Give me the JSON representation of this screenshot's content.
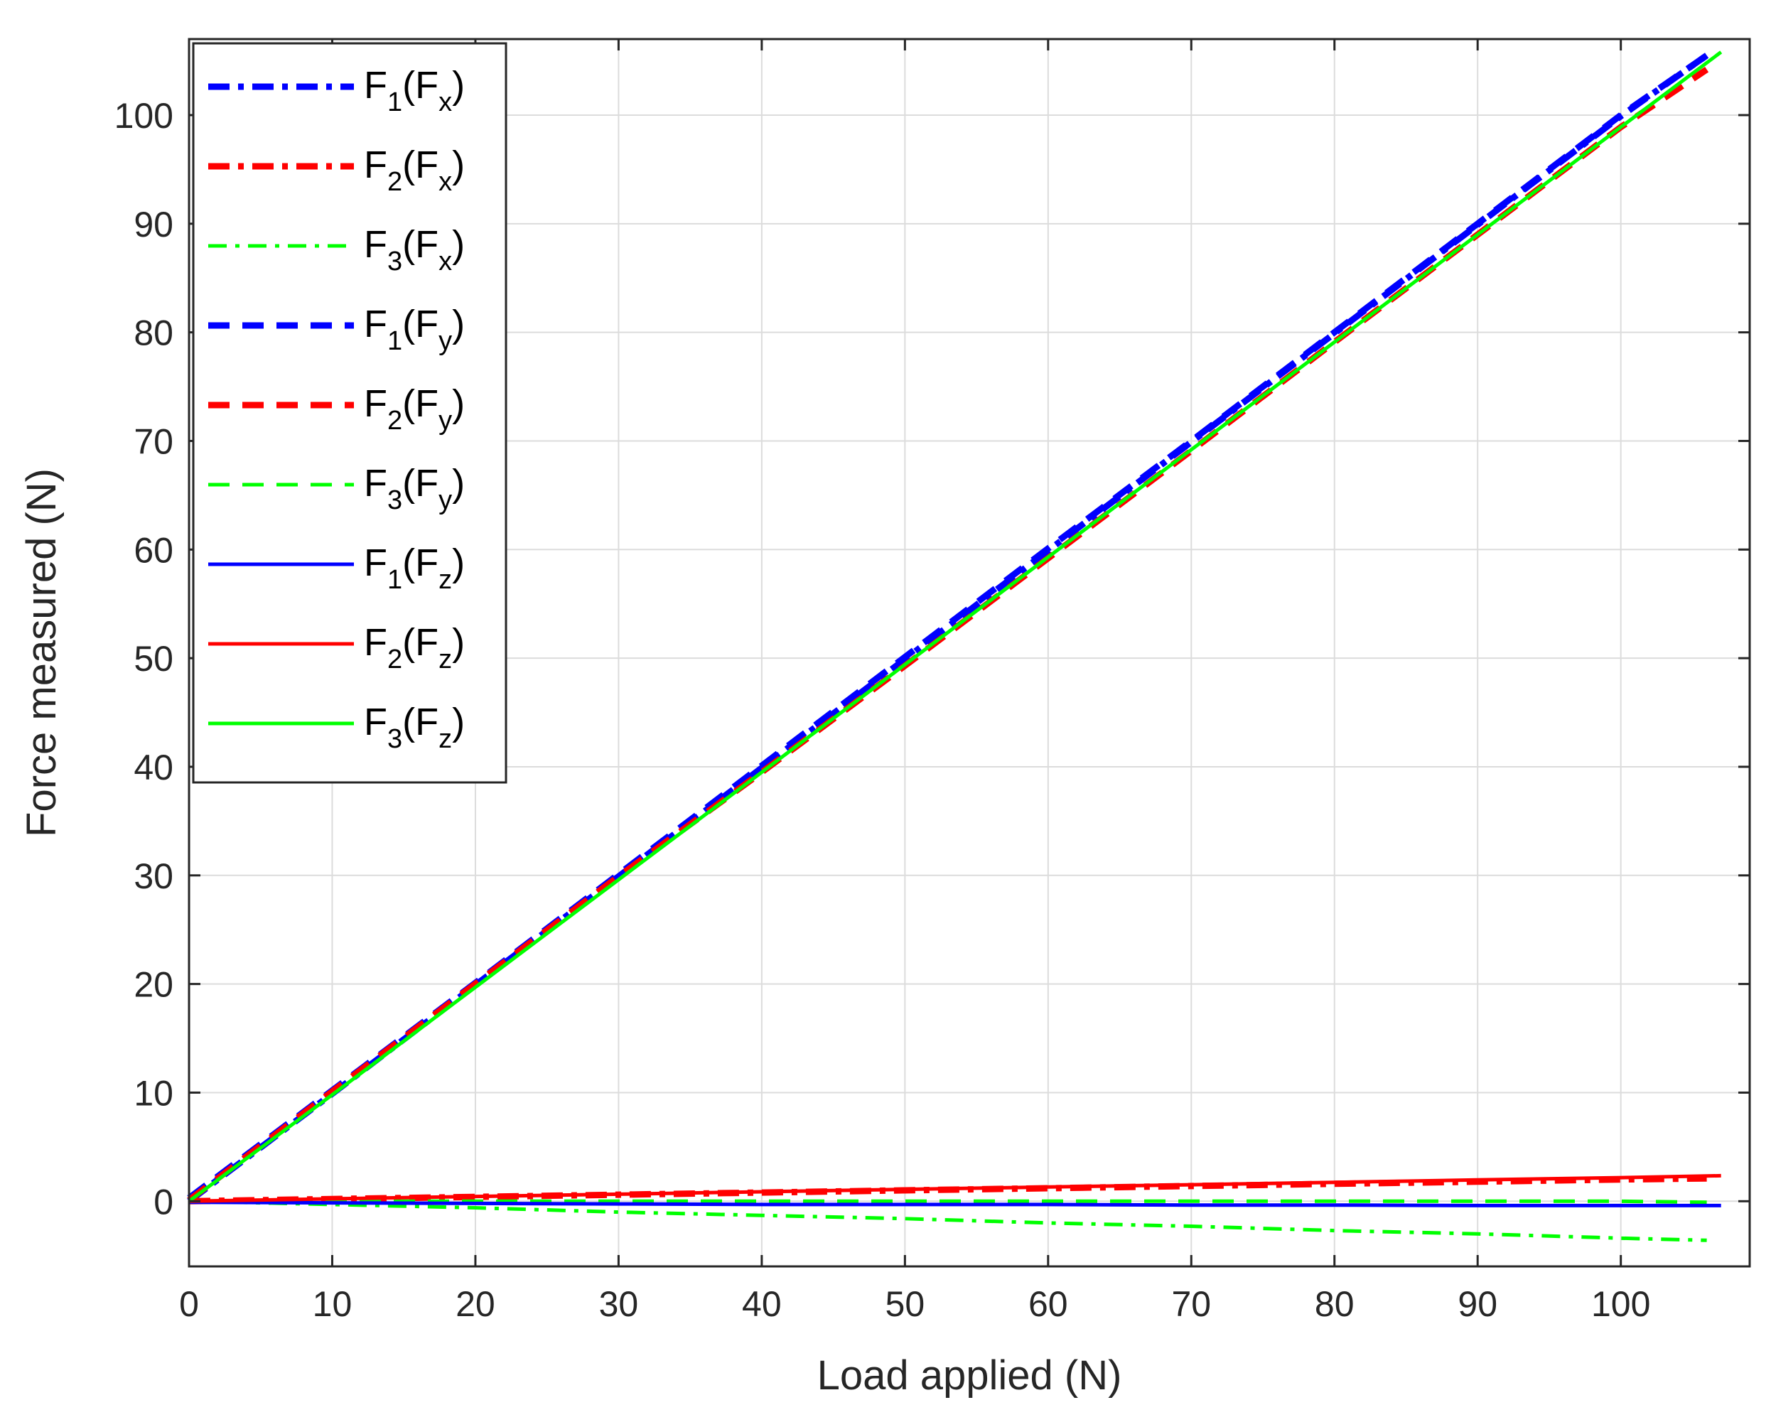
{
  "chart_data": {
    "type": "line",
    "xlabel": "Load applied (N)",
    "ylabel": "Force measured (N)",
    "xlim": [
      0,
      109
    ],
    "ylim": [
      -6,
      107
    ],
    "xticks": [
      0,
      10,
      20,
      30,
      40,
      50,
      60,
      70,
      80,
      90,
      100
    ],
    "yticks": [
      0,
      10,
      20,
      30,
      40,
      50,
      60,
      70,
      80,
      90,
      100
    ],
    "grid": true,
    "legend_position": "top-left",
    "series": [
      {
        "name": "F1(Fx)",
        "main": "F",
        "sub": "1",
        "arg_main": "F",
        "arg_sub": "x",
        "color": "#0000ff",
        "style": "dashdot-thick",
        "x": [
          0,
          10,
          20,
          30,
          40,
          50,
          60,
          70,
          80,
          90,
          100,
          106
        ],
        "y": [
          0,
          9.9,
          19.9,
          29.9,
          39.9,
          49.9,
          59.9,
          69.9,
          79.9,
          89.9,
          99.9,
          105.5
        ]
      },
      {
        "name": "F2(Fx)",
        "main": "F",
        "sub": "2",
        "arg_main": "F",
        "arg_sub": "x",
        "color": "#ff0000",
        "style": "dashdot-thick",
        "x": [
          0,
          10,
          20,
          30,
          40,
          50,
          60,
          70,
          80,
          90,
          100,
          106
        ],
        "y": [
          0,
          0.2,
          0.4,
          0.6,
          0.8,
          1.0,
          1.2,
          1.4,
          1.6,
          1.8,
          2.0,
          2.1
        ]
      },
      {
        "name": "F3(Fx)",
        "main": "F",
        "sub": "3",
        "arg_main": "F",
        "arg_sub": "x",
        "color": "#00ff00",
        "style": "dashdot-thin",
        "x": [
          0,
          10,
          20,
          30,
          40,
          50,
          60,
          70,
          80,
          90,
          100,
          106
        ],
        "y": [
          0,
          -0.3,
          -0.6,
          -1.0,
          -1.3,
          -1.6,
          -2.0,
          -2.3,
          -2.7,
          -3.0,
          -3.4,
          -3.6
        ]
      },
      {
        "name": "F1(Fy)",
        "main": "F",
        "sub": "1",
        "arg_main": "F",
        "arg_sub": "y",
        "color": "#0000ff",
        "style": "dashed-thick",
        "x": [
          0,
          10,
          20,
          30,
          40,
          50,
          60,
          70,
          80,
          90,
          100,
          106
        ],
        "y": [
          0.3,
          10.2,
          20.1,
          30.1,
          40.1,
          50.1,
          60.1,
          70.0,
          80.0,
          90.0,
          100.0,
          105.5
        ]
      },
      {
        "name": "F2(Fy)",
        "main": "F",
        "sub": "2",
        "arg_main": "F",
        "arg_sub": "y",
        "color": "#ff0000",
        "style": "dashed-thick",
        "x": [
          0,
          10,
          20,
          30,
          40,
          50,
          60,
          70,
          80,
          90,
          100,
          106
        ],
        "y": [
          0.1,
          10.1,
          20.0,
          29.9,
          39.5,
          49.3,
          59.2,
          69.1,
          79.1,
          89.0,
          98.9,
          104.2
        ]
      },
      {
        "name": "F3(Fy)",
        "main": "F",
        "sub": "3",
        "arg_main": "F",
        "arg_sub": "y",
        "color": "#00ff00",
        "style": "dashed-thin",
        "x": [
          0,
          10,
          20,
          30,
          40,
          50,
          60,
          70,
          80,
          90,
          100,
          106
        ],
        "y": [
          0,
          0,
          0,
          0,
          0,
          0,
          0,
          0,
          0,
          0,
          0,
          -0.1
        ]
      },
      {
        "name": "F1(Fz)",
        "main": "F",
        "sub": "1",
        "arg_main": "F",
        "arg_sub": "z",
        "color": "#0000ff",
        "style": "solid",
        "x": [
          0,
          10,
          20,
          30,
          40,
          50,
          60,
          70,
          80,
          90,
          100,
          107
        ],
        "y": [
          -0.1,
          -0.15,
          -0.2,
          -0.25,
          -0.3,
          -0.3,
          -0.3,
          -0.35,
          -0.35,
          -0.4,
          -0.4,
          -0.4
        ]
      },
      {
        "name": "F2(Fz)",
        "main": "F",
        "sub": "2",
        "arg_main": "F",
        "arg_sub": "z",
        "color": "#ff0000",
        "style": "solid",
        "x": [
          0,
          10,
          20,
          30,
          40,
          50,
          60,
          70,
          80,
          90,
          100,
          107
        ],
        "y": [
          0,
          0.22,
          0.44,
          0.65,
          0.87,
          1.09,
          1.31,
          1.52,
          1.74,
          1.96,
          2.17,
          2.35
        ]
      },
      {
        "name": "F3(Fz)",
        "main": "F",
        "sub": "3",
        "arg_main": "F",
        "arg_sub": "z",
        "color": "#00ff00",
        "style": "solid",
        "x": [
          0,
          10,
          20,
          30,
          40,
          50,
          60,
          70,
          80,
          90,
          100,
          107
        ],
        "y": [
          0,
          9.8,
          19.7,
          29.6,
          39.5,
          49.4,
          59.3,
          69.2,
          79.1,
          89.0,
          98.9,
          105.8
        ]
      }
    ]
  }
}
